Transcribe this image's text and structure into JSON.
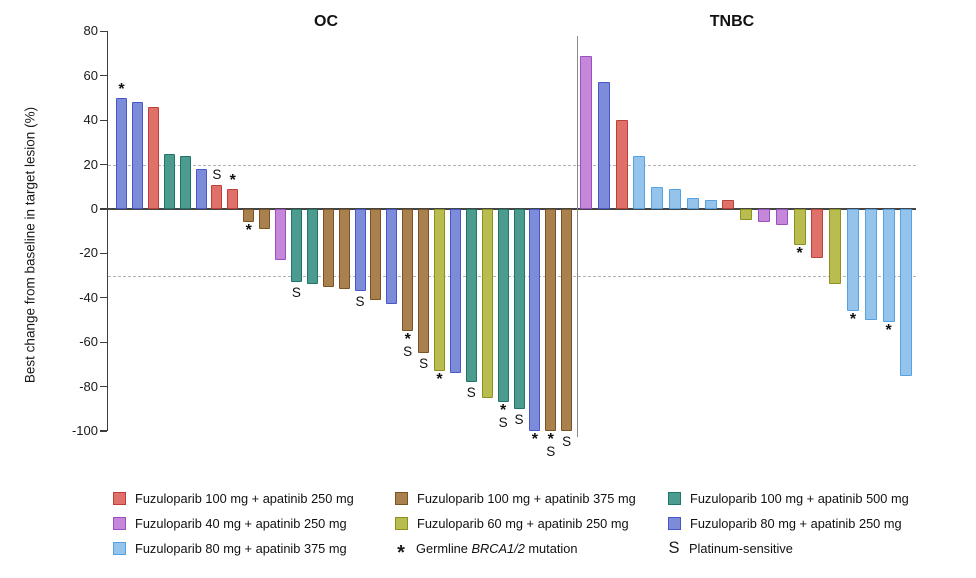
{
  "figure_title": "",
  "chart_data": {
    "type": "bar",
    "subtype": "waterfall",
    "ylabel": "Best change from baseline in target lesion (%)",
    "ylim": [
      -100,
      80
    ],
    "yticks": [
      80,
      60,
      40,
      20,
      0,
      -20,
      -40,
      -60,
      -80,
      -100
    ],
    "reference_lines_y": [
      20,
      -30
    ],
    "grid": false,
    "legend_position": "bottom",
    "series_labels": {
      "fz100_ap250": "Fuzuloparib 100 mg + apatinib 250 mg",
      "fz100_ap375": "Fuzuloparib 100 mg + apatinib 375 mg",
      "fz100_ap500": "Fuzuloparib 100 mg + apatinib 500 mg",
      "fz40_ap250": "Fuzuloparib 40 mg + apatinib 250 mg",
      "fz60_ap250": "Fuzuloparib 60 mg + apatinib 250 mg",
      "fz80_ap250": "Fuzuloparib 80 mg + apatinib 250 mg",
      "fz80_ap375": "Fuzuloparib 80 mg + apatinib 375 mg"
    },
    "series_colors": {
      "fz100_ap250": {
        "fill": "#E0706A",
        "stroke": "#BC4038"
      },
      "fz100_ap375": {
        "fill": "#A9814F",
        "stroke": "#7A5322"
      },
      "fz100_ap500": {
        "fill": "#4C9B8F",
        "stroke": "#20756A"
      },
      "fz40_ap250": {
        "fill": "#C587DA",
        "stroke": "#9C4FC0"
      },
      "fz60_ap250": {
        "fill": "#B9BC4F",
        "stroke": "#8D901F"
      },
      "fz80_ap250": {
        "fill": "#7D8CD8",
        "stroke": "#4856C8"
      },
      "fz80_ap375": {
        "fill": "#94C3EC",
        "stroke": "#55A2E2"
      }
    },
    "mark_meanings": {
      "*": "Germline BRCA1/2 mutation",
      "S": "Platinum-sensitive"
    },
    "groups": [
      {
        "title": "OC",
        "bars": [
          {
            "v": 50,
            "s": "fz80_ap250",
            "m": "*"
          },
          {
            "v": 48,
            "s": "fz80_ap250",
            "m": ""
          },
          {
            "v": 46,
            "s": "fz100_ap250",
            "m": ""
          },
          {
            "v": 25,
            "s": "fz100_ap500",
            "m": ""
          },
          {
            "v": 24,
            "s": "fz100_ap500",
            "m": ""
          },
          {
            "v": 18,
            "s": "fz80_ap250",
            "m": ""
          },
          {
            "v": 11,
            "s": "fz100_ap250",
            "m": "S"
          },
          {
            "v": 9,
            "s": "fz100_ap250",
            "m": "*"
          },
          {
            "v": -6,
            "s": "fz100_ap375",
            "m": "*"
          },
          {
            "v": -9,
            "s": "fz100_ap375",
            "m": ""
          },
          {
            "v": -23,
            "s": "fz40_ap250",
            "m": ""
          },
          {
            "v": -33,
            "s": "fz100_ap500",
            "m": "S"
          },
          {
            "v": -34,
            "s": "fz100_ap500",
            "m": ""
          },
          {
            "v": -35,
            "s": "fz100_ap375",
            "m": ""
          },
          {
            "v": -36,
            "s": "fz100_ap375",
            "m": ""
          },
          {
            "v": -37,
            "s": "fz80_ap250",
            "m": "S"
          },
          {
            "v": -41,
            "s": "fz100_ap375",
            "m": ""
          },
          {
            "v": -43,
            "s": "fz80_ap250",
            "m": ""
          },
          {
            "v": -55,
            "s": "fz100_ap375",
            "m": "*S"
          },
          {
            "v": -65,
            "s": "fz100_ap375",
            "m": "S"
          },
          {
            "v": -73,
            "s": "fz60_ap250",
            "m": "*"
          },
          {
            "v": -74,
            "s": "fz80_ap250",
            "m": ""
          },
          {
            "v": -78,
            "s": "fz100_ap500",
            "m": "S"
          },
          {
            "v": -85,
            "s": "fz60_ap250",
            "m": ""
          },
          {
            "v": -87,
            "s": "fz100_ap500",
            "m": "*S"
          },
          {
            "v": -90,
            "s": "fz100_ap500",
            "m": "S"
          },
          {
            "v": -100,
            "s": "fz80_ap250",
            "m": "*"
          },
          {
            "v": -100,
            "s": "fz100_ap375",
            "m": "*S"
          },
          {
            "v": -100,
            "s": "fz100_ap375",
            "m": "S"
          }
        ]
      },
      {
        "title": "TNBC",
        "bars": [
          {
            "v": 69,
            "s": "fz40_ap250",
            "m": ""
          },
          {
            "v": 57,
            "s": "fz80_ap250",
            "m": ""
          },
          {
            "v": 40,
            "s": "fz100_ap250",
            "m": ""
          },
          {
            "v": 24,
            "s": "fz80_ap375",
            "m": ""
          },
          {
            "v": 10,
            "s": "fz80_ap375",
            "m": ""
          },
          {
            "v": 9,
            "s": "fz80_ap375",
            "m": ""
          },
          {
            "v": 5,
            "s": "fz80_ap375",
            "m": ""
          },
          {
            "v": 4,
            "s": "fz80_ap375",
            "m": ""
          },
          {
            "v": 4,
            "s": "fz100_ap250",
            "m": ""
          },
          {
            "v": -5,
            "s": "fz60_ap250",
            "m": ""
          },
          {
            "v": -6,
            "s": "fz40_ap250",
            "m": ""
          },
          {
            "v": -7,
            "s": "fz40_ap250",
            "m": ""
          },
          {
            "v": -16,
            "s": "fz60_ap250",
            "m": "*"
          },
          {
            "v": -22,
            "s": "fz100_ap250",
            "m": ""
          },
          {
            "v": -34,
            "s": "fz60_ap250",
            "m": ""
          },
          {
            "v": -46,
            "s": "fz80_ap375",
            "m": "*"
          },
          {
            "v": -50,
            "s": "fz80_ap375",
            "m": ""
          },
          {
            "v": -51,
            "s": "fz80_ap375",
            "m": "*"
          },
          {
            "v": -75,
            "s": "fz80_ap375",
            "m": ""
          }
        ]
      }
    ]
  },
  "legend": {
    "columns": [
      [
        {
          "type": "swatch",
          "series": "fz100_ap250"
        },
        {
          "type": "swatch",
          "series": "fz40_ap250"
        },
        {
          "type": "swatch",
          "series": "fz80_ap375"
        }
      ],
      [
        {
          "type": "swatch",
          "series": "fz100_ap375"
        },
        {
          "type": "swatch",
          "series": "fz60_ap250"
        },
        {
          "type": "symbol",
          "symbol": "*",
          "label_parts": [
            {
              "t": "Germline "
            },
            {
              "t": "BRCA1/2",
              "i": true
            },
            {
              "t": " mutation"
            }
          ]
        }
      ],
      [
        {
          "type": "swatch",
          "series": "fz100_ap500"
        },
        {
          "type": "swatch",
          "series": "fz80_ap250"
        },
        {
          "type": "symbol",
          "symbol": "S",
          "label_parts": [
            {
              "t": "Platinum-sensitive"
            }
          ]
        }
      ]
    ]
  }
}
